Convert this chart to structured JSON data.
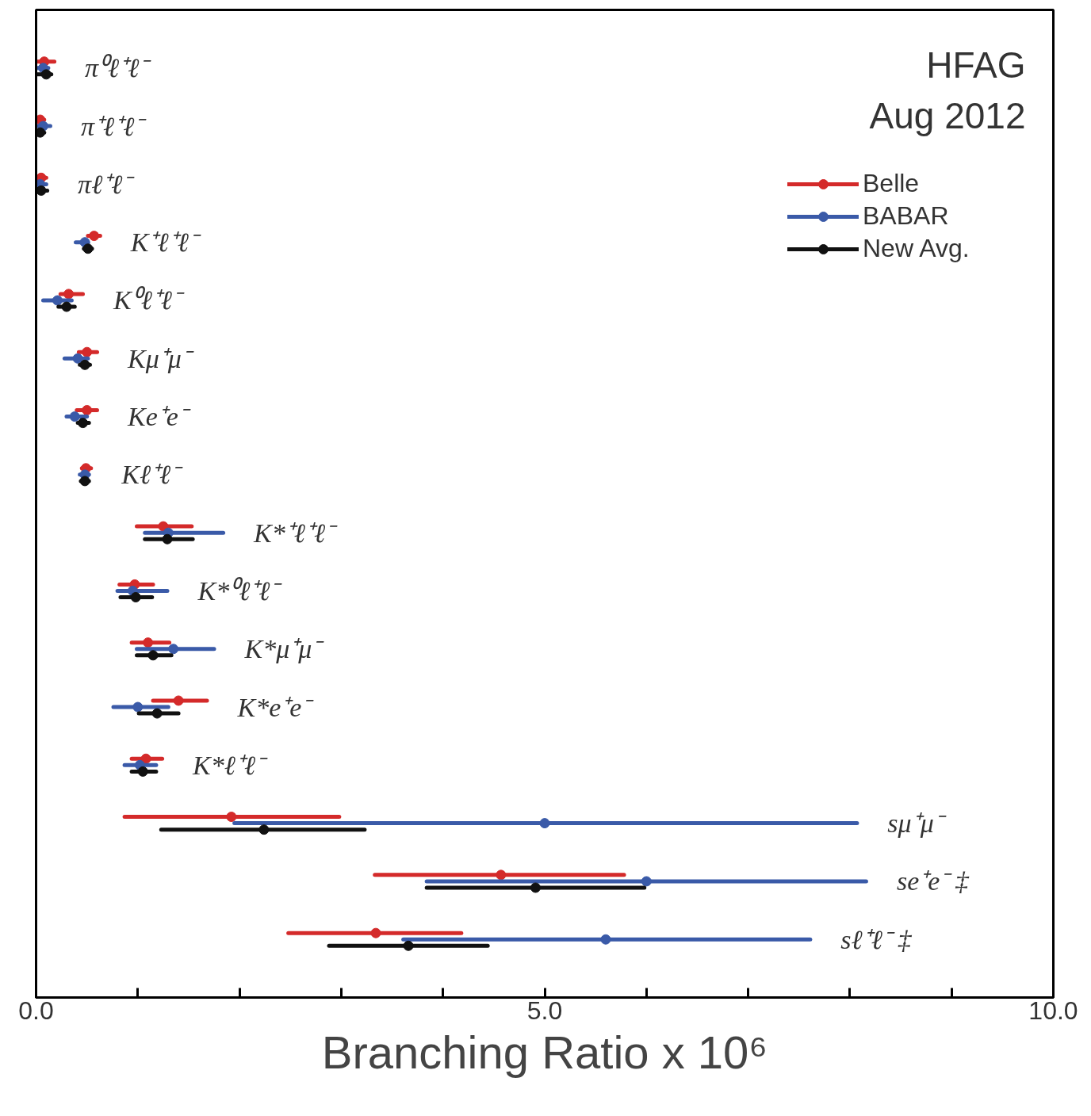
{
  "chart_data": {
    "type": "scatter",
    "orientation": "horizontal",
    "marker": "circle",
    "line_style": "solid",
    "grid": false,
    "legend": "top right",
    "tick_labels": "x",
    "annotations": [
      "HFAG",
      "Aug 2012"
    ],
    "xlabel": "Branching Ratio x 10⁶",
    "xlim": [
      0,
      10
    ],
    "xticks": [
      {
        "value": 0,
        "label": "0.0"
      },
      {
        "value": 1,
        "label": null
      },
      {
        "value": 2,
        "label": null
      },
      {
        "value": 3,
        "label": null
      },
      {
        "value": 4,
        "label": null
      },
      {
        "value": 5,
        "label": "5.0"
      },
      {
        "value": 6,
        "label": null
      },
      {
        "value": 7,
        "label": null
      },
      {
        "value": 8,
        "label": null
      },
      {
        "value": 9,
        "label": null
      },
      {
        "value": 10,
        "label": "10.0"
      }
    ],
    "categories": [
      "π⁰ℓ⁺ℓ⁻",
      "π⁺ℓ⁺ℓ⁻",
      "πℓ⁺ℓ⁻",
      "K⁺ℓ⁺ℓ⁻",
      "K⁰ℓ⁺ℓ⁻",
      "Kμ⁺μ⁻",
      "Ke⁺e⁻",
      "Kℓ⁺ℓ⁻",
      "K*⁺ℓ⁺ℓ⁻",
      "K*⁰ℓ⁺ℓ⁻",
      "K*μ⁺μ⁻",
      "K*e⁺e⁻",
      "K*ℓ⁺ℓ⁻",
      "sμ⁺μ⁻",
      "se⁺e⁻ ‡",
      "sℓ⁺ℓ⁻ ‡"
    ],
    "series": [
      {
        "name": "Belle",
        "color": "#d42a2a",
        "values": [
          0.08,
          0.04,
          0.05,
          0.57,
          0.32,
          0.5,
          0.5,
          0.49,
          1.25,
          0.97,
          1.1,
          1.4,
          1.08,
          1.92,
          4.57,
          3.34
        ],
        "errors": [
          [
            0,
            0.18
          ],
          [
            0,
            0.08
          ],
          [
            0,
            0.1
          ],
          [
            0.51,
            0.63
          ],
          [
            0.24,
            0.46
          ],
          [
            0.42,
            0.6
          ],
          [
            0.4,
            0.6
          ],
          [
            0.45,
            0.54
          ],
          [
            0.99,
            1.53
          ],
          [
            0.82,
            1.15
          ],
          [
            0.94,
            1.31
          ],
          [
            1.15,
            1.68
          ],
          [
            0.94,
            1.24
          ],
          [
            0.87,
            2.98
          ],
          [
            3.33,
            5.78
          ],
          [
            2.48,
            4.18
          ]
        ]
      },
      {
        "name": "BABAR",
        "color": "#3a5aa8",
        "values": [
          0.07,
          0.07,
          0.04,
          0.48,
          0.21,
          0.41,
          0.38,
          0.48,
          1.3,
          0.95,
          1.35,
          1.0,
          1.02,
          5.0,
          6.0,
          5.6
        ],
        "errors": [
          [
            0,
            0.12
          ],
          [
            0,
            0.14
          ],
          [
            0,
            0.1
          ],
          [
            0.39,
            0.51
          ],
          [
            0.07,
            0.35
          ],
          [
            0.28,
            0.51
          ],
          [
            0.3,
            0.5
          ],
          [
            0.43,
            0.52
          ],
          [
            1.07,
            1.84
          ],
          [
            0.8,
            1.29
          ],
          [
            0.99,
            1.75
          ],
          [
            0.76,
            1.3
          ],
          [
            0.87,
            1.18
          ],
          [
            1.95,
            8.07
          ],
          [
            3.84,
            8.16
          ],
          [
            3.61,
            7.61
          ]
        ]
      },
      {
        "name": "New Avg.",
        "color": "#111111",
        "values": [
          0.1,
          0.04,
          0.05,
          0.51,
          0.3,
          0.48,
          0.46,
          0.48,
          1.29,
          0.98,
          1.15,
          1.19,
          1.05,
          2.24,
          4.91,
          3.66
        ],
        "errors": [
          [
            0,
            0.15
          ],
          [
            0,
            0.08
          ],
          [
            0,
            0.11
          ],
          [
            0.47,
            0.55
          ],
          [
            0.22,
            0.38
          ],
          [
            0.43,
            0.53
          ],
          [
            0.41,
            0.52
          ],
          [
            0.44,
            0.52
          ],
          [
            1.07,
            1.54
          ],
          [
            0.83,
            1.14
          ],
          [
            0.99,
            1.33
          ],
          [
            1.01,
            1.4
          ],
          [
            0.94,
            1.18
          ],
          [
            1.23,
            3.23
          ],
          [
            3.84,
            5.98
          ],
          [
            2.88,
            4.44
          ]
        ]
      }
    ]
  }
}
